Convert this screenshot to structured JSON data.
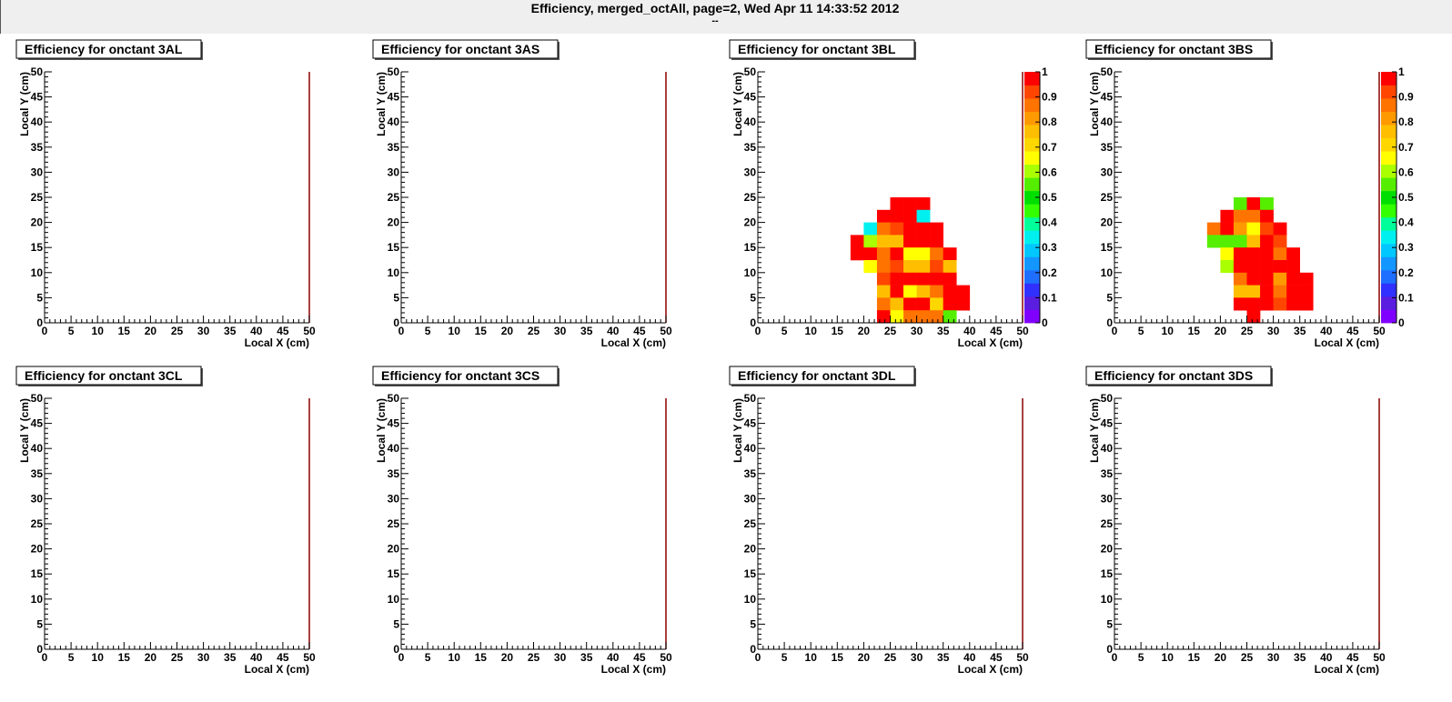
{
  "page": {
    "title": "Efficiency, merged_octAll, page=2,  Wed Apr 11 14:33:52 2012",
    "subtitle": "--"
  },
  "palette": [
    "#8000ff",
    "#5a1ee0",
    "#3030ff",
    "#1e6eff",
    "#1496ff",
    "#00c8ff",
    "#00f0f0",
    "#00ff9a",
    "#33ff00",
    "#00dd00",
    "#55ee00",
    "#aaff00",
    "#ffff00",
    "#ffd700",
    "#ffbf00",
    "#ff9900",
    "#ff7300",
    "#ff4500",
    "#ff0000"
  ],
  "chart_data": [
    {
      "type": "heatmap",
      "title": "Efficiency for onctant 3AL",
      "xlabel": "Local X (cm)",
      "ylabel": "Local Y (cm)",
      "xlim": [
        0,
        50
      ],
      "ylim": [
        0,
        50
      ],
      "zlim": [
        0,
        1
      ],
      "xticks": [
        "0",
        "5",
        "10",
        "15",
        "20",
        "25",
        "30",
        "35",
        "40",
        "45",
        "50"
      ],
      "yticks": [
        "0",
        "5",
        "10",
        "15",
        "20",
        "25",
        "30",
        "35",
        "40",
        "45",
        "50"
      ],
      "bin_width": 2.5,
      "colorbar": false,
      "cells": []
    },
    {
      "type": "heatmap",
      "title": "Efficiency for onctant 3AS",
      "xlabel": "Local X (cm)",
      "ylabel": "Local Y (cm)",
      "xlim": [
        0,
        50
      ],
      "ylim": [
        0,
        50
      ],
      "zlim": [
        0,
        1
      ],
      "xticks": [
        "0",
        "5",
        "10",
        "15",
        "20",
        "25",
        "30",
        "35",
        "40",
        "45",
        "50"
      ],
      "yticks": [
        "0",
        "5",
        "10",
        "15",
        "20",
        "25",
        "30",
        "35",
        "40",
        "45",
        "50"
      ],
      "bin_width": 2.5,
      "colorbar": false,
      "cells": []
    },
    {
      "type": "heatmap",
      "title": "Efficiency for onctant 3BL",
      "xlabel": "Local X (cm)",
      "ylabel": "Local Y (cm)",
      "xlim": [
        0,
        50
      ],
      "ylim": [
        0,
        50
      ],
      "zlim": [
        0,
        1
      ],
      "xticks": [
        "0",
        "5",
        "10",
        "15",
        "20",
        "25",
        "30",
        "35",
        "40",
        "45",
        "50"
      ],
      "yticks": [
        "0",
        "5",
        "10",
        "15",
        "20",
        "25",
        "30",
        "35",
        "40",
        "45",
        "50"
      ],
      "bin_width": 2.5,
      "colorbar": true,
      "colorbar_ticks": [
        "0",
        "0.1",
        "0.2",
        "0.3",
        "0.4",
        "0.5",
        "0.6",
        "0.7",
        "0.8",
        "0.9",
        "1"
      ],
      "cells": [
        [
          25,
          22.5,
          1
        ],
        [
          27.5,
          22.5,
          1
        ],
        [
          30,
          22.5,
          1
        ],
        [
          22.5,
          20,
          1
        ],
        [
          25,
          20,
          1
        ],
        [
          27.5,
          20,
          1
        ],
        [
          30,
          20,
          0.32
        ],
        [
          20,
          17.5,
          0.33
        ],
        [
          22.5,
          17.5,
          0.85
        ],
        [
          25,
          17.5,
          0.9
        ],
        [
          27.5,
          17.5,
          1
        ],
        [
          30,
          17.5,
          1
        ],
        [
          32.5,
          17.5,
          1
        ],
        [
          17.5,
          15,
          1
        ],
        [
          20,
          15,
          0.62
        ],
        [
          22.5,
          15,
          0.77
        ],
        [
          25,
          15,
          0.75
        ],
        [
          27.5,
          15,
          1
        ],
        [
          30,
          15,
          1
        ],
        [
          32.5,
          15,
          1
        ],
        [
          17.5,
          12.5,
          1
        ],
        [
          20,
          12.5,
          1
        ],
        [
          22.5,
          12.5,
          0.88
        ],
        [
          25,
          12.5,
          1
        ],
        [
          27.5,
          12.5,
          0.68
        ],
        [
          30,
          12.5,
          0.68
        ],
        [
          32.5,
          12.5,
          0.85
        ],
        [
          35,
          12.5,
          1
        ],
        [
          20,
          10,
          0.65
        ],
        [
          22.5,
          10,
          0.88
        ],
        [
          25,
          10,
          0.93
        ],
        [
          27.5,
          10,
          0.75
        ],
        [
          30,
          10,
          0.75
        ],
        [
          32.5,
          10,
          0.9
        ],
        [
          35,
          10,
          0.78
        ],
        [
          22.5,
          7.5,
          0.9
        ],
        [
          25,
          7.5,
          1
        ],
        [
          27.5,
          7.5,
          1
        ],
        [
          30,
          7.5,
          1
        ],
        [
          32.5,
          7.5,
          1
        ],
        [
          35,
          7.5,
          1
        ],
        [
          22.5,
          5,
          0.78
        ],
        [
          25,
          5,
          0.95
        ],
        [
          27.5,
          5,
          0.68
        ],
        [
          30,
          5,
          0.78
        ],
        [
          32.5,
          5,
          0.88
        ],
        [
          35,
          5,
          1
        ],
        [
          37.5,
          5,
          1
        ],
        [
          22.5,
          2.5,
          0.88
        ],
        [
          25,
          2.5,
          0.77
        ],
        [
          27.5,
          2.5,
          1
        ],
        [
          30,
          2.5,
          1
        ],
        [
          32.5,
          2.5,
          0.72
        ],
        [
          35,
          2.5,
          1
        ],
        [
          37.5,
          2.5,
          1
        ],
        [
          22.5,
          0,
          1
        ],
        [
          25,
          0,
          0.68
        ],
        [
          27.5,
          0,
          0.85
        ],
        [
          30,
          0,
          0.88
        ],
        [
          32.5,
          0,
          0.88
        ],
        [
          35,
          0,
          0.55
        ]
      ]
    },
    {
      "type": "heatmap",
      "title": "Efficiency for onctant 3BS",
      "xlabel": "Local X (cm)",
      "ylabel": "Local Y (cm)",
      "xlim": [
        0,
        50
      ],
      "ylim": [
        0,
        50
      ],
      "zlim": [
        0,
        1
      ],
      "xticks": [
        "0",
        "5",
        "10",
        "15",
        "20",
        "25",
        "30",
        "35",
        "40",
        "45",
        "50"
      ],
      "yticks": [
        "0",
        "5",
        "10",
        "15",
        "20",
        "25",
        "30",
        "35",
        "40",
        "45",
        "50"
      ],
      "bin_width": 2.5,
      "colorbar": true,
      "colorbar_ticks": [
        "0",
        "0.1",
        "0.2",
        "0.3",
        "0.4",
        "0.5",
        "0.6",
        "0.7",
        "0.8",
        "0.9",
        "1"
      ],
      "cells": [
        [
          22.5,
          22.5,
          0.55
        ],
        [
          25,
          22.5,
          1
        ],
        [
          27.5,
          22.5,
          0.55
        ],
        [
          20,
          20,
          1
        ],
        [
          22.5,
          20,
          0.88
        ],
        [
          25,
          20,
          0.85
        ],
        [
          27.5,
          20,
          1
        ],
        [
          17.5,
          17.5,
          0.85
        ],
        [
          20,
          17.5,
          1
        ],
        [
          22.5,
          17.5,
          0.82
        ],
        [
          25,
          17.5,
          0.65
        ],
        [
          27.5,
          17.5,
          0.9
        ],
        [
          30,
          17.5,
          1
        ],
        [
          17.5,
          15,
          0.55
        ],
        [
          20,
          15,
          0.55
        ],
        [
          22.5,
          15,
          0.55
        ],
        [
          25,
          15,
          0.78
        ],
        [
          27.5,
          15,
          1
        ],
        [
          30,
          15,
          0.92
        ],
        [
          20,
          12.5,
          0.65
        ],
        [
          22.5,
          12.5,
          1
        ],
        [
          25,
          12.5,
          1
        ],
        [
          27.5,
          12.5,
          1
        ],
        [
          30,
          12.5,
          0.88
        ],
        [
          32.5,
          12.5,
          1
        ],
        [
          20,
          10,
          0.62
        ],
        [
          22.5,
          10,
          1
        ],
        [
          25,
          10,
          1
        ],
        [
          27.5,
          10,
          1
        ],
        [
          30,
          10,
          1
        ],
        [
          32.5,
          10,
          1
        ],
        [
          22.5,
          7.5,
          0.85
        ],
        [
          25,
          7.5,
          1
        ],
        [
          27.5,
          7.5,
          1
        ],
        [
          30,
          7.5,
          0.8
        ],
        [
          32.5,
          7.5,
          1
        ],
        [
          35,
          7.5,
          1
        ],
        [
          22.5,
          5,
          0.78
        ],
        [
          25,
          5,
          0.78
        ],
        [
          27.5,
          5,
          1
        ],
        [
          30,
          5,
          0.88
        ],
        [
          32.5,
          5,
          1
        ],
        [
          35,
          5,
          1
        ],
        [
          22.5,
          2.5,
          1
        ],
        [
          25,
          2.5,
          1
        ],
        [
          27.5,
          2.5,
          1
        ],
        [
          30,
          2.5,
          0.92
        ],
        [
          32.5,
          2.5,
          1
        ],
        [
          35,
          2.5,
          1
        ],
        [
          25,
          0,
          1
        ]
      ]
    },
    {
      "type": "heatmap",
      "title": "Efficiency for onctant 3CL",
      "xlabel": "Local X (cm)",
      "ylabel": "Local Y (cm)",
      "xlim": [
        0,
        50
      ],
      "ylim": [
        0,
        50
      ],
      "zlim": [
        0,
        1
      ],
      "xticks": [
        "0",
        "5",
        "10",
        "15",
        "20",
        "25",
        "30",
        "35",
        "40",
        "45",
        "50"
      ],
      "yticks": [
        "0",
        "5",
        "10",
        "15",
        "20",
        "25",
        "30",
        "35",
        "40",
        "45",
        "50"
      ],
      "bin_width": 2.5,
      "colorbar": false,
      "cells": []
    },
    {
      "type": "heatmap",
      "title": "Efficiency for onctant 3CS",
      "xlabel": "Local X (cm)",
      "ylabel": "Local Y (cm)",
      "xlim": [
        0,
        50
      ],
      "ylim": [
        0,
        50
      ],
      "zlim": [
        0,
        1
      ],
      "xticks": [
        "0",
        "5",
        "10",
        "15",
        "20",
        "25",
        "30",
        "35",
        "40",
        "45",
        "50"
      ],
      "yticks": [
        "0",
        "5",
        "10",
        "15",
        "20",
        "25",
        "30",
        "35",
        "40",
        "45",
        "50"
      ],
      "bin_width": 2.5,
      "colorbar": false,
      "cells": []
    },
    {
      "type": "heatmap",
      "title": "Efficiency for onctant 3DL",
      "xlabel": "Local X (cm)",
      "ylabel": "Local Y (cm)",
      "xlim": [
        0,
        50
      ],
      "ylim": [
        0,
        50
      ],
      "zlim": [
        0,
        1
      ],
      "xticks": [
        "0",
        "5",
        "10",
        "15",
        "20",
        "25",
        "30",
        "35",
        "40",
        "45",
        "50"
      ],
      "yticks": [
        "0",
        "5",
        "10",
        "15",
        "20",
        "25",
        "30",
        "35",
        "40",
        "45",
        "50"
      ],
      "bin_width": 2.5,
      "colorbar": false,
      "cells": []
    },
    {
      "type": "heatmap",
      "title": "Efficiency for onctant 3DS",
      "xlabel": "Local X (cm)",
      "ylabel": "Local Y (cm)",
      "xlim": [
        0,
        50
      ],
      "ylim": [
        0,
        50
      ],
      "zlim": [
        0,
        1
      ],
      "xticks": [
        "0",
        "5",
        "10",
        "15",
        "20",
        "25",
        "30",
        "35",
        "40",
        "45",
        "50"
      ],
      "yticks": [
        "0",
        "5",
        "10",
        "15",
        "20",
        "25",
        "30",
        "35",
        "40",
        "45",
        "50"
      ],
      "bin_width": 2.5,
      "colorbar": false,
      "cells": []
    }
  ]
}
